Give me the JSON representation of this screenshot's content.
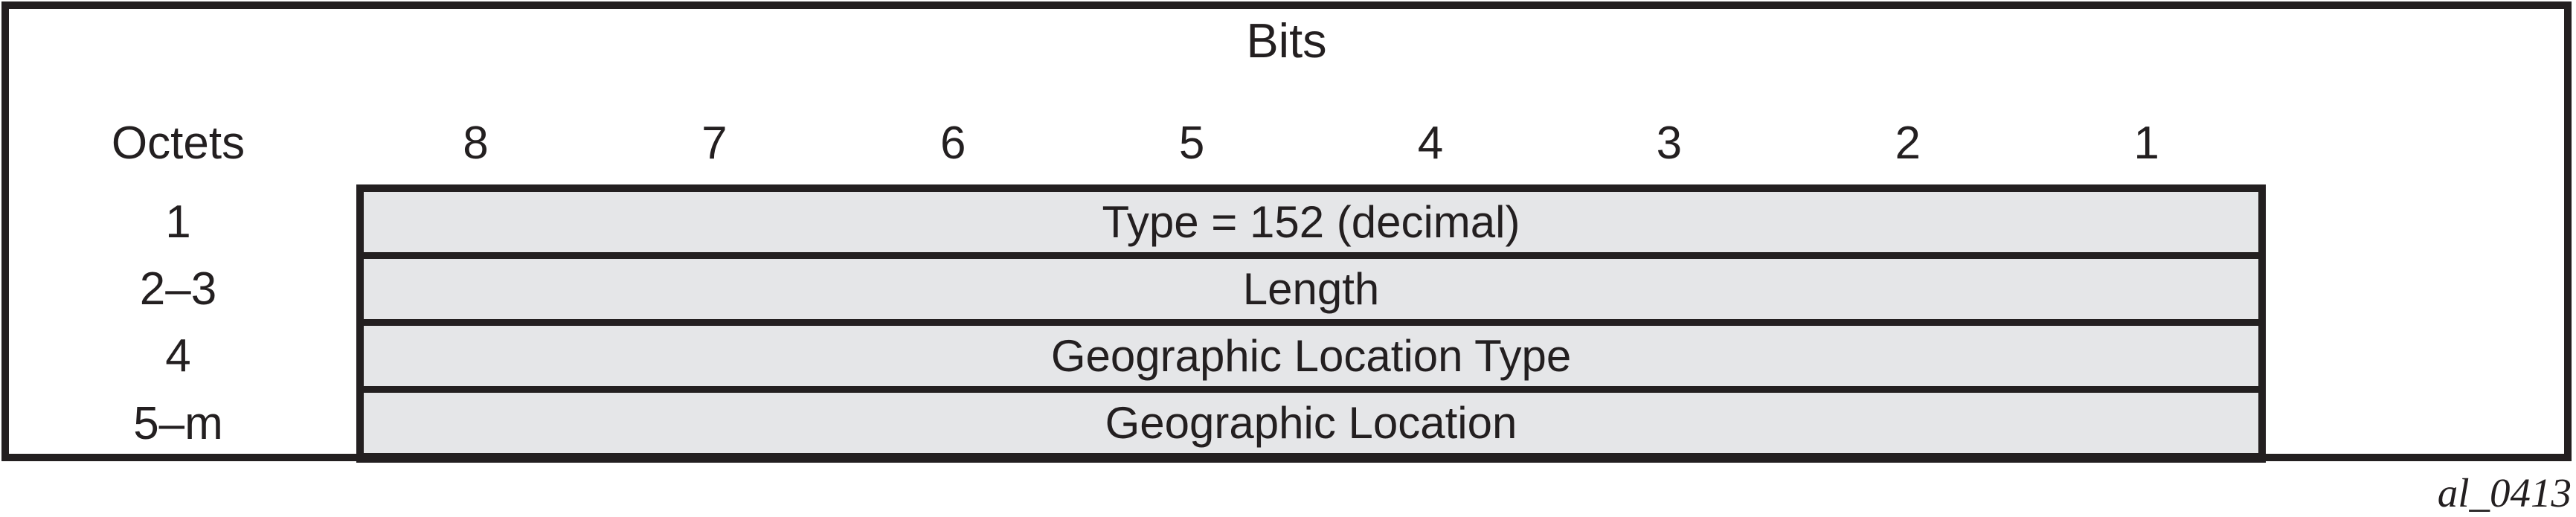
{
  "figure": {
    "title": "Bits",
    "octets_header": "Octets",
    "bit_columns": [
      "8",
      "7",
      "6",
      "5",
      "4",
      "3",
      "2",
      "1"
    ],
    "rows": [
      {
        "octets": "1",
        "label": "Type = 152 (decimal)"
      },
      {
        "octets": "2–3",
        "label": "Length"
      },
      {
        "octets": "4",
        "label": "Geographic Location Type"
      },
      {
        "octets": "5–m",
        "label": "Geographic Location"
      }
    ],
    "figure_id": "al_0413",
    "colors": {
      "line": "#231f20",
      "row_fill": "#e5e6e8",
      "background": "#ffffff"
    }
  }
}
